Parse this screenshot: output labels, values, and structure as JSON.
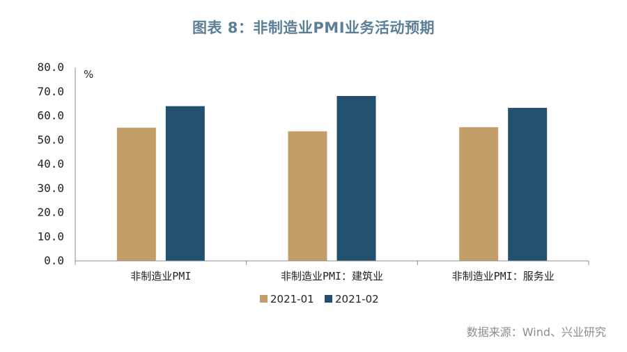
{
  "title": "图表 8：非制造业PMI业务活动预期",
  "source": "数据来源：Wind、兴业研究",
  "chart_data": {
    "type": "bar",
    "title": "图表 8：非制造业PMI业务活动预期",
    "unit": "%",
    "categories": [
      "非制造业PMI",
      "非制造业PMI：建筑业",
      "非制造业PMI：服务业"
    ],
    "series": [
      {
        "name": "2021-01",
        "color": "#c49e69",
        "values": [
          55.1,
          53.6,
          55.3
        ]
      },
      {
        "name": "2021-02",
        "color": "#24506f",
        "values": [
          64.0,
          68.2,
          63.3
        ]
      }
    ],
    "ylim": [
      0,
      80
    ],
    "yticks": [
      "0.0",
      "10.0",
      "20.0",
      "30.0",
      "40.0",
      "50.0",
      "60.0",
      "70.0",
      "80.0"
    ],
    "legend_position": "bottom-center",
    "grid": false
  }
}
